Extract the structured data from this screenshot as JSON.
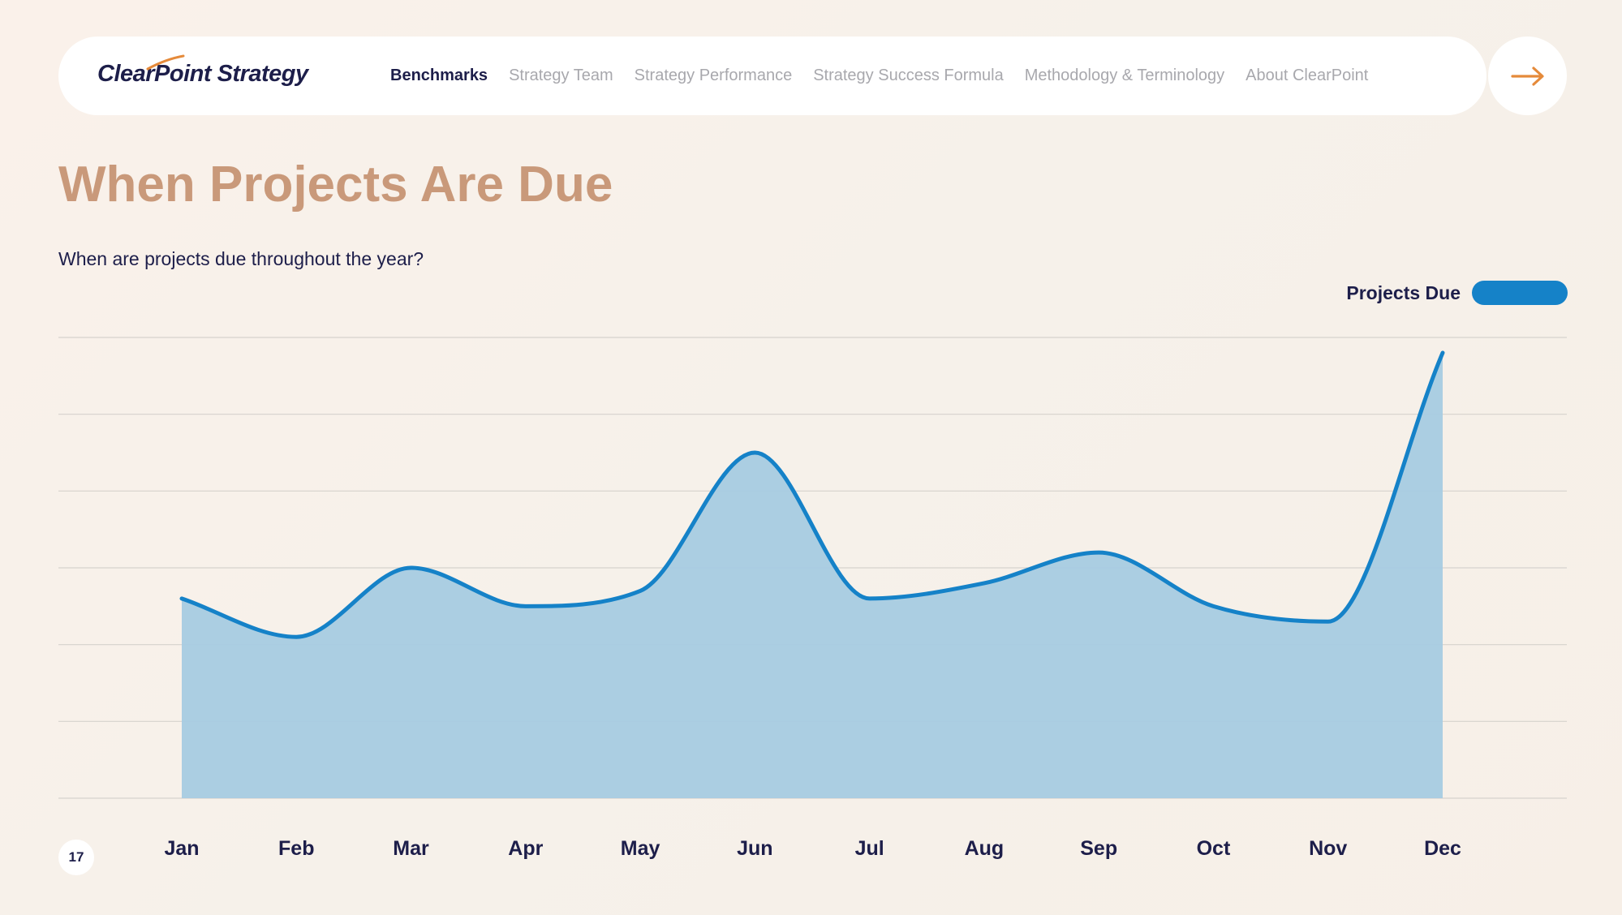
{
  "header": {
    "logo_text": "ClearPoint Strategy",
    "nav": [
      {
        "label": "Benchmarks",
        "active": true
      },
      {
        "label": "Strategy Team",
        "active": false
      },
      {
        "label": "Strategy Performance",
        "active": false
      },
      {
        "label": "Strategy Success Formula",
        "active": false
      },
      {
        "label": "Methodology & Terminology",
        "active": false
      },
      {
        "label": "About ClearPoint",
        "active": false
      }
    ],
    "next_icon": "arrow-right-icon"
  },
  "page": {
    "title": "When Projects Are Due",
    "subtitle": "When are projects due throughout the year?",
    "page_number": "17"
  },
  "colors": {
    "accent": "#1582c8",
    "area_fill": "#a6cbe2",
    "title": "#c9997a",
    "arrow": "#e58a3a",
    "text": "#1d1e4a"
  },
  "chart_data": {
    "type": "area",
    "categories": [
      "Jan",
      "Feb",
      "Mar",
      "Apr",
      "May",
      "Jun",
      "Jul",
      "Aug",
      "Sep",
      "Oct",
      "Nov",
      "Dec"
    ],
    "series": [
      {
        "name": "Projects Due",
        "values": [
          2.6,
          2.1,
          3.0,
          2.5,
          2.7,
          4.5,
          2.6,
          2.8,
          3.2,
          2.5,
          2.3,
          5.8
        ]
      }
    ],
    "ylim": [
      0,
      6
    ],
    "grid": true,
    "legend_position": "top-right",
    "title": "",
    "xlabel": "",
    "ylabel": ""
  }
}
